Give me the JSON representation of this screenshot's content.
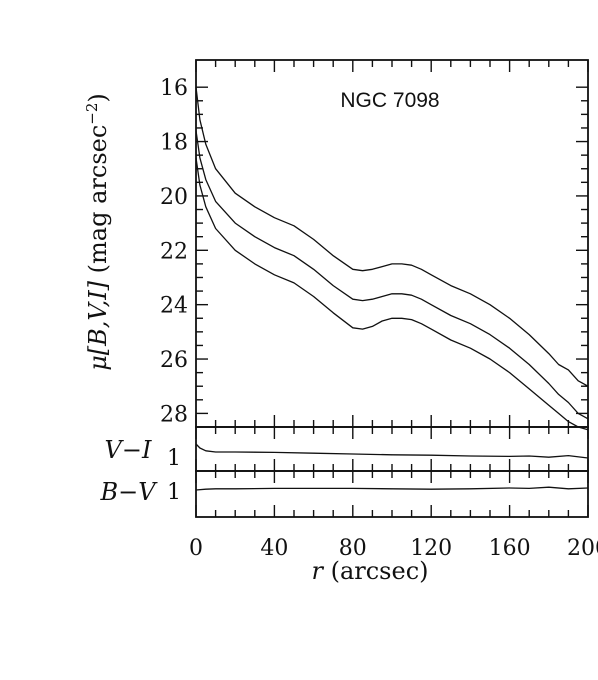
{
  "chart_data": {
    "type": "line",
    "title": "NGC 7098",
    "xlabel": {
      "sym": "r",
      "unit": "(arcsec)"
    },
    "xlim": [
      0,
      200
    ],
    "x_ticks": [
      "0",
      "40",
      "80",
      "120",
      "160",
      "200"
    ],
    "grid": false,
    "panels": [
      {
        "id": "surface_brightness",
        "ylabel": {
          "sym": "μ[B,V,I]",
          "unit": "(mag arcsec",
          "exp": "−2",
          "close": ")"
        },
        "ylim": [
          15,
          28.5
        ],
        "y_inverted": true,
        "y_ticks": [
          "16",
          "18",
          "20",
          "22",
          "24",
          "26",
          "28"
        ],
        "x": [
          0,
          2,
          5,
          10,
          20,
          30,
          40,
          50,
          60,
          70,
          80,
          85,
          90,
          95,
          100,
          105,
          110,
          115,
          120,
          130,
          140,
          150,
          160,
          170,
          180,
          185,
          190,
          195,
          200
        ],
        "series": [
          {
            "values": [
              16.0,
              17.2,
              18.1,
              19.0,
              19.9,
              20.4,
              20.8,
              21.1,
              21.6,
              22.2,
              22.7,
              22.75,
              22.7,
              22.6,
              22.5,
              22.5,
              22.55,
              22.7,
              22.9,
              23.3,
              23.6,
              24.0,
              24.5,
              25.1,
              25.8,
              26.2,
              26.4,
              26.8,
              27.0
            ]
          },
          {
            "values": [
              17.6,
              18.6,
              19.4,
              20.2,
              21.0,
              21.5,
              21.9,
              22.2,
              22.7,
              23.3,
              23.8,
              23.85,
              23.8,
              23.7,
              23.6,
              23.6,
              23.65,
              23.8,
              24.0,
              24.4,
              24.7,
              25.1,
              25.6,
              26.2,
              26.9,
              27.3,
              27.6,
              28.0,
              28.2
            ]
          },
          {
            "values": [
              18.6,
              19.6,
              20.4,
              21.2,
              22.0,
              22.5,
              22.9,
              23.2,
              23.7,
              24.3,
              24.85,
              24.9,
              24.8,
              24.6,
              24.5,
              24.5,
              24.55,
              24.7,
              24.9,
              25.3,
              25.6,
              26.0,
              26.5,
              27.1,
              27.7,
              28.0,
              28.3,
              28.5,
              28.6
            ]
          }
        ]
      },
      {
        "id": "v_minus_i",
        "ylabel": "V−I",
        "y_ticks": [
          "1"
        ],
        "x": [
          0,
          2,
          5,
          10,
          20,
          40,
          60,
          80,
          100,
          120,
          140,
          160,
          170,
          180,
          190,
          200
        ],
        "values": [
          1.35,
          1.25,
          1.18,
          1.15,
          1.15,
          1.14,
          1.12,
          1.1,
          1.08,
          1.07,
          1.05,
          1.04,
          1.05,
          1.02,
          1.06,
          1.0
        ]
      },
      {
        "id": "b_minus_v",
        "ylabel": "B−V",
        "y_ticks": [
          "1"
        ],
        "x": [
          0,
          5,
          10,
          20,
          40,
          60,
          80,
          100,
          120,
          140,
          160,
          170,
          180,
          190,
          200
        ],
        "values": [
          0.95,
          0.97,
          0.98,
          0.98,
          0.99,
          0.99,
          0.99,
          0.98,
          0.97,
          0.98,
          1.0,
          0.99,
          1.02,
          0.98,
          1.0
        ]
      }
    ]
  }
}
